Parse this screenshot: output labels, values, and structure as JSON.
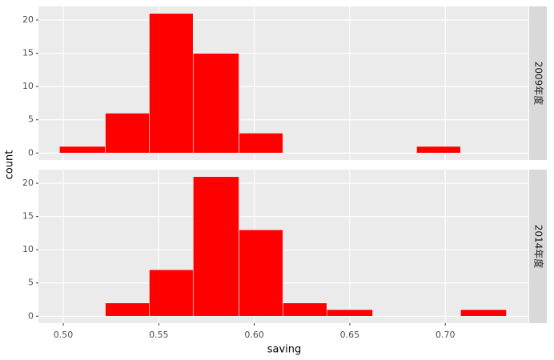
{
  "chart_data": {
    "type": "histogram",
    "x_label": "saving",
    "y_label": "count",
    "color": "#ff0000",
    "bins": [
      0.498,
      0.522,
      0.545,
      0.568,
      0.592,
      0.615,
      0.638,
      0.662,
      0.685,
      0.708,
      0.732
    ],
    "xlim": [
      0.487,
      0.7435
    ],
    "xticks": [
      {
        "value": 0.5,
        "label": "0.50"
      },
      0.55,
      {
        "value": 0.6,
        "label": "0.60"
      },
      0.65,
      {
        "value": 0.7,
        "label": "0.70"
      }
    ],
    "ylim": [
      -1.05,
      22.05
    ],
    "yticks": [
      0,
      5,
      10,
      15,
      20
    ],
    "grid": true,
    "facets": [
      {
        "label": "2009年度",
        "values": [
          1,
          6,
          21,
          15,
          3,
          0,
          0,
          0,
          1,
          0
        ]
      },
      {
        "label": "2014年度",
        "values": [
          0,
          2,
          7,
          21,
          13,
          2,
          1,
          0,
          0,
          1
        ]
      }
    ]
  }
}
